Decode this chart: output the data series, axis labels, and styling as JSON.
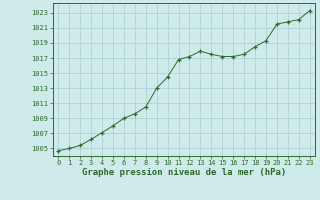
{
  "x": [
    0,
    1,
    2,
    3,
    4,
    5,
    6,
    7,
    8,
    9,
    10,
    11,
    12,
    13,
    14,
    15,
    16,
    17,
    18,
    19,
    20,
    21,
    22,
    23
  ],
  "y": [
    1004.7,
    1005.0,
    1005.4,
    1006.2,
    1007.1,
    1008.0,
    1009.0,
    1009.6,
    1010.5,
    1013.0,
    1014.5,
    1016.8,
    1017.2,
    1017.9,
    1017.5,
    1017.2,
    1017.2,
    1017.5,
    1018.5,
    1019.3,
    1021.5,
    1021.8,
    1022.1,
    1023.3
  ],
  "line_color": "#2d6a2d",
  "marker": "+",
  "bg_color": "#ceeaea",
  "grid_color": "#aacccc",
  "xlabel": "Graphe pression niveau de la mer (hPa)",
  "xlabel_fontsize": 6.5,
  "ylabel_ticks": [
    1005,
    1007,
    1009,
    1011,
    1013,
    1015,
    1017,
    1019,
    1021,
    1023
  ],
  "ylim": [
    1004.0,
    1024.3
  ],
  "xlim": [
    -0.5,
    23.5
  ],
  "xticks": [
    0,
    1,
    2,
    3,
    4,
    5,
    6,
    7,
    8,
    9,
    10,
    11,
    12,
    13,
    14,
    15,
    16,
    17,
    18,
    19,
    20,
    21,
    22,
    23
  ],
  "tick_fontsize": 5.0,
  "tick_color": "#2d6a2d",
  "spine_color": "#2d6a2d"
}
